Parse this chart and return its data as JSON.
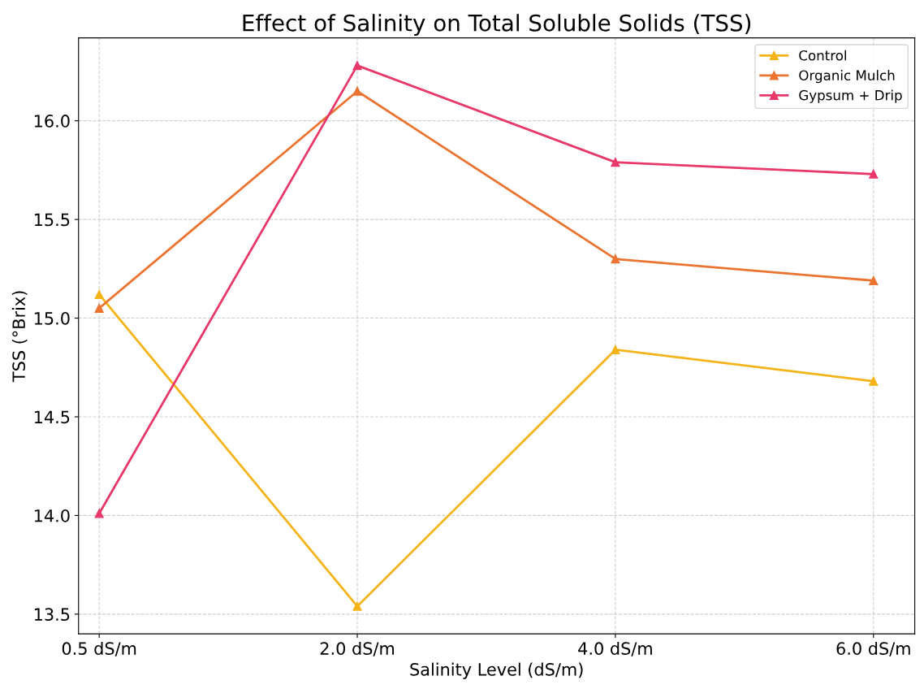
{
  "chart_data": {
    "type": "line",
    "title": "Effect of Salinity on Total Soluble Solids (TSS)",
    "xlabel": "Salinity Level (dS/m)",
    "ylabel": "TSS (°Brix)",
    "categories": [
      "0.5 dS/m",
      "2.0 dS/m",
      "4.0 dS/m",
      "6.0 dS/m"
    ],
    "series": [
      {
        "name": "Control",
        "color": "#f5b317",
        "values": [
          15.12,
          13.54,
          14.84,
          14.68
        ]
      },
      {
        "name": "Organic Mulch",
        "color": "#ea7330",
        "values": [
          15.05,
          16.15,
          15.3,
          15.19
        ]
      },
      {
        "name": "Gypsum + Drip",
        "color": "#e8386a",
        "values": [
          14.01,
          16.28,
          15.79,
          15.73
        ]
      }
    ],
    "ylim": [
      13.4,
      16.42
    ],
    "yticks": [
      {
        "value": 13.5,
        "label": "13.5"
      },
      {
        "value": 14.0,
        "label": "14.0"
      },
      {
        "value": 14.5,
        "label": "14.5"
      },
      {
        "value": 15.0,
        "label": "15.0"
      },
      {
        "value": 15.5,
        "label": "15.5"
      },
      {
        "value": 16.0,
        "label": "16.0"
      }
    ],
    "grid": true,
    "legend": "top right",
    "marker": "triangle",
    "line_style": "solid"
  }
}
